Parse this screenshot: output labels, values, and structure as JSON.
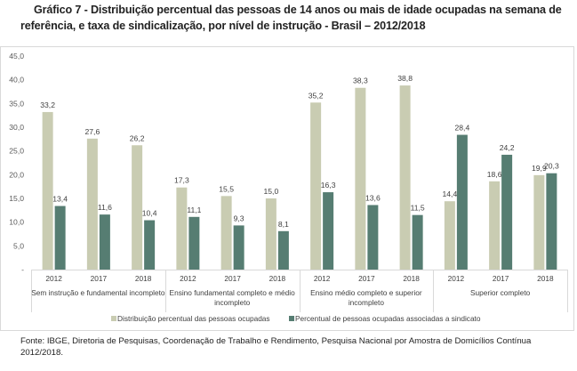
{
  "title": "Gráfico 7 - Distribuição percentual das pessoas de 14 anos ou mais de idade ocupadas na semana de referência, e taxa de sindicalização, por nível de instrução - Brasil – 2012/2018",
  "source": "Fonte: IBGE, Diretoria de Pesquisas, Coordenação de Trabalho e Rendimento, Pesquisa Nacional por Amostra de Domicílios Contínua 2012/2018.",
  "colors": {
    "distribution": "#c9ccb2",
    "union": "#567d72"
  },
  "chart_data": {
    "type": "bar",
    "title": "Gráfico 7 - Distribuição percentual das pessoas de 14 anos ou mais de idade ocupadas na semana de referência, e taxa de sindicalização, por nível de instrução - Brasil – 2012/2018",
    "xlabel": "",
    "ylabel": "",
    "ylim": [
      0,
      45
    ],
    "yticks": [
      0,
      5,
      10,
      15,
      20,
      25,
      30,
      35,
      40,
      45
    ],
    "ytick_labels": [
      "-",
      "5,0",
      "10,0",
      "15,0",
      "20,0",
      "25,0",
      "30,0",
      "35,0",
      "40,0",
      "45,0"
    ],
    "grid": false,
    "legend_position": "bottom",
    "groups": [
      "Sem instrução e fundamental incompleto",
      "Ensino fundamental completo e médio incompleto",
      "Ensino médio completo e superior incompleto",
      "Superior completo"
    ],
    "group_label_lines": [
      [
        "Sem instrução e fundamental incompleto"
      ],
      [
        "Ensino fundamental completo e médio",
        "incompleto"
      ],
      [
        "Ensino médio completo e superior",
        "incompleto"
      ],
      [
        "Superior completo"
      ]
    ],
    "categories": [
      "2012",
      "2017",
      "2018"
    ],
    "series": [
      {
        "name": "Distribuição percentual das pessoas ocupadas",
        "values": [
          [
            33.2,
            27.6,
            26.2
          ],
          [
            17.3,
            15.5,
            15.0
          ],
          [
            35.2,
            38.3,
            38.8
          ],
          [
            14.4,
            18.6,
            19.9
          ]
        ],
        "labels": [
          [
            "33,2",
            "27,6",
            "26,2"
          ],
          [
            "17,3",
            "15,5",
            "15,0"
          ],
          [
            "35,2",
            "38,3",
            "38,8"
          ],
          [
            "14,4",
            "18,6",
            "19,9"
          ]
        ]
      },
      {
        "name": "Percentual de pessoas ocupadas associadas a sindicato",
        "values": [
          [
            13.4,
            11.6,
            10.4
          ],
          [
            11.1,
            9.3,
            8.1
          ],
          [
            16.3,
            13.6,
            11.5
          ],
          [
            28.4,
            24.2,
            20.3
          ]
        ],
        "labels": [
          [
            "13,4",
            "11,6",
            "10,4"
          ],
          [
            "11,1",
            "9,3",
            "8,1"
          ],
          [
            "16,3",
            "13,6",
            "11,5"
          ],
          [
            "28,4",
            "24,2",
            "20,3"
          ]
        ]
      }
    ]
  }
}
